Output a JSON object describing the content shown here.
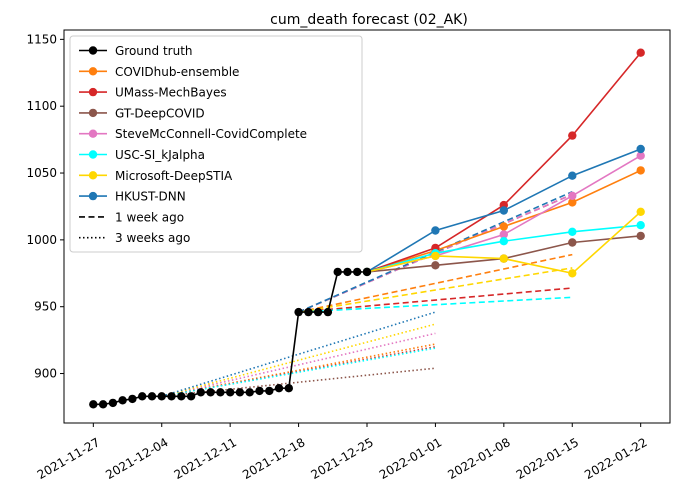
{
  "chart_data": {
    "type": "line",
    "title": "cum_death forecast (02_AK)",
    "xlabel": "",
    "ylabel": "",
    "x_axis_type": "date",
    "xlim": [
      "2021-11-24",
      "2022-01-25"
    ],
    "ylim": [
      863,
      1157
    ],
    "x_ticks": [
      "2021-11-27",
      "2021-12-04",
      "2021-12-11",
      "2021-12-18",
      "2021-12-25",
      "2022-01-01",
      "2022-01-08",
      "2022-01-15",
      "2022-01-22"
    ],
    "y_ticks": [
      900,
      950,
      1000,
      1050,
      1100,
      1150
    ],
    "grid": false,
    "legend_position": "top-left",
    "legend": {
      "ground_truth": "Ground truth",
      "one_week": "1 week ago",
      "three_weeks": "3 weeks ago"
    },
    "ground_truth": {
      "name": "Ground truth",
      "color": "#000000",
      "points": [
        [
          "2021-11-27",
          877
        ],
        [
          "2021-11-28",
          877
        ],
        [
          "2021-11-29",
          878
        ],
        [
          "2021-11-30",
          880
        ],
        [
          "2021-12-01",
          881
        ],
        [
          "2021-12-02",
          883
        ],
        [
          "2021-12-03",
          883
        ],
        [
          "2021-12-04",
          883
        ],
        [
          "2021-12-05",
          883
        ],
        [
          "2021-12-06",
          883
        ],
        [
          "2021-12-07",
          883
        ],
        [
          "2021-12-08",
          886
        ],
        [
          "2021-12-09",
          886
        ],
        [
          "2021-12-10",
          886
        ],
        [
          "2021-12-11",
          886
        ],
        [
          "2021-12-12",
          886
        ],
        [
          "2021-12-13",
          886
        ],
        [
          "2021-12-14",
          887
        ],
        [
          "2021-12-15",
          887
        ],
        [
          "2021-12-16",
          889
        ],
        [
          "2021-12-17",
          889
        ],
        [
          "2021-12-18",
          946
        ],
        [
          "2021-12-19",
          946
        ],
        [
          "2021-12-20",
          946
        ],
        [
          "2021-12-21",
          946
        ],
        [
          "2021-12-22",
          976
        ],
        [
          "2021-12-23",
          976
        ],
        [
          "2021-12-24",
          976
        ],
        [
          "2021-12-25",
          976
        ]
      ]
    },
    "series": [
      {
        "name": "COVIDhub-ensemble",
        "color": "#ff7f0e",
        "current": [
          [
            "2021-12-25",
            976
          ],
          [
            "2022-01-01",
            992
          ],
          [
            "2022-01-08",
            1010
          ],
          [
            "2022-01-15",
            1028
          ],
          [
            "2022-01-22",
            1052
          ]
        ],
        "one_week_ago": [
          [
            "2021-12-18",
            946
          ],
          [
            "2022-01-15",
            989
          ]
        ],
        "three_weeks_ago": [
          [
            "2021-12-04",
            883
          ],
          [
            "2022-01-01",
            922
          ]
        ]
      },
      {
        "name": "UMass-MechBayes",
        "color": "#d62728",
        "current": [
          [
            "2021-12-25",
            976
          ],
          [
            "2022-01-01",
            994
          ],
          [
            "2022-01-08",
            1026
          ],
          [
            "2022-01-15",
            1078
          ],
          [
            "2022-01-22",
            1140
          ]
        ],
        "one_week_ago": [
          [
            "2021-12-18",
            946
          ],
          [
            "2022-01-15",
            964
          ]
        ],
        "three_weeks_ago": [
          [
            "2021-12-04",
            883
          ],
          [
            "2022-01-01",
            920
          ]
        ]
      },
      {
        "name": "GT-DeepCOVID",
        "color": "#8c564b",
        "current": [
          [
            "2021-12-25",
            976
          ],
          [
            "2022-01-01",
            981
          ],
          [
            "2022-01-08",
            986
          ],
          [
            "2022-01-15",
            998
          ],
          [
            "2022-01-22",
            1003
          ]
        ],
        "one_week_ago": [
          [
            "2021-12-18",
            946
          ],
          [
            "2022-01-15",
            1034
          ]
        ],
        "three_weeks_ago": [
          [
            "2021-12-04",
            883
          ],
          [
            "2022-01-01",
            904
          ]
        ]
      },
      {
        "name": "SteveMcConnell-CovidComplete",
        "color": "#e377c2",
        "current": [
          [
            "2021-12-25",
            976
          ],
          [
            "2022-01-01",
            988
          ],
          [
            "2022-01-08",
            1004
          ],
          [
            "2022-01-15",
            1033
          ],
          [
            "2022-01-22",
            1063
          ]
        ],
        "one_week_ago": [
          [
            "2021-12-18",
            946
          ],
          [
            "2022-01-15",
            1034
          ]
        ],
        "three_weeks_ago": [
          [
            "2021-12-04",
            883
          ],
          [
            "2022-01-01",
            930
          ]
        ]
      },
      {
        "name": "USC-SI_kJalpha",
        "color": "#00ffff",
        "current": [
          [
            "2021-12-25",
            976
          ],
          [
            "2022-01-01",
            990
          ],
          [
            "2022-01-08",
            999
          ],
          [
            "2022-01-15",
            1006
          ],
          [
            "2022-01-22",
            1011
          ]
        ],
        "one_week_ago": [
          [
            "2021-12-18",
            946
          ],
          [
            "2022-01-15",
            957
          ]
        ],
        "three_weeks_ago": [
          [
            "2021-12-04",
            883
          ],
          [
            "2022-01-01",
            919
          ]
        ]
      },
      {
        "name": "Microsoft-DeepSTIA",
        "color": "#ffd700",
        "current": [
          [
            "2021-12-25",
            976
          ],
          [
            "2022-01-01",
            988
          ],
          [
            "2022-01-08",
            986
          ],
          [
            "2022-01-15",
            975
          ],
          [
            "2022-01-22",
            1021
          ]
        ],
        "one_week_ago": [
          [
            "2021-12-18",
            946
          ],
          [
            "2022-01-15",
            979
          ]
        ],
        "three_weeks_ago": [
          [
            "2021-12-04",
            883
          ],
          [
            "2022-01-01",
            937
          ]
        ]
      },
      {
        "name": "HKUST-DNN",
        "color": "#1f77b4",
        "current": [
          [
            "2021-12-25",
            976
          ],
          [
            "2022-01-01",
            1007
          ],
          [
            "2022-01-08",
            1022
          ],
          [
            "2022-01-15",
            1048
          ],
          [
            "2022-01-22",
            1068
          ]
        ],
        "one_week_ago": [
          [
            "2021-12-18",
            946
          ],
          [
            "2022-01-15",
            1036
          ]
        ],
        "three_weeks_ago": [
          [
            "2021-12-04",
            883
          ],
          [
            "2022-01-01",
            946
          ]
        ]
      }
    ]
  }
}
